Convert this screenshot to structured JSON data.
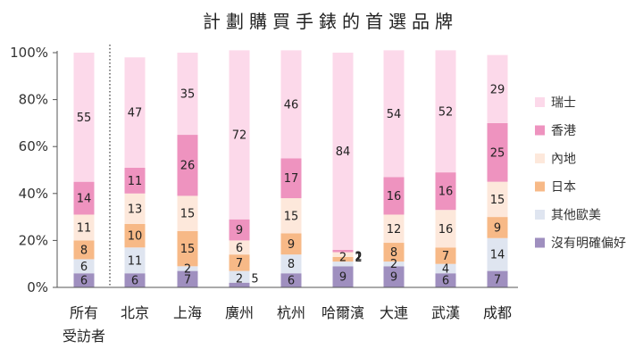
{
  "chart_data": {
    "type": "bar",
    "stacked": true,
    "percent": true,
    "title": "計劃購買手錶的首選品牌",
    "categories": [
      "所有受訪者",
      "北京",
      "上海",
      "廣州",
      "杭州",
      "哈爾濱",
      "大連",
      "武漢",
      "成都"
    ],
    "category_lines": [
      [
        "所有",
        "受訪者"
      ],
      [
        "北京"
      ],
      [
        "上海"
      ],
      [
        "廣州"
      ],
      [
        "杭州"
      ],
      [
        "哈爾濱"
      ],
      [
        "大連"
      ],
      [
        "武漢"
      ],
      [
        "成都"
      ]
    ],
    "ylim": [
      0,
      100
    ],
    "yticks": [
      "0%",
      "20%",
      "40%",
      "60%",
      "80%",
      "100%"
    ],
    "legend_position": "right",
    "series": [
      {
        "name": "沒有明確偏好",
        "color": "#9f8fbf",
        "values": [
          6,
          6,
          7,
          2,
          6,
          9,
          9,
          6,
          7
        ]
      },
      {
        "name": "其他歐美",
        "color": "#dfe5f0",
        "values": [
          6,
          11,
          2,
          5,
          8,
          2,
          2,
          4,
          14
        ]
      },
      {
        "name": "日本",
        "color": "#f7b987",
        "values": [
          8,
          10,
          15,
          7,
          9,
          2,
          8,
          7,
          9
        ]
      },
      {
        "name": "內地",
        "color": "#fde8db",
        "values": [
          11,
          13,
          15,
          6,
          15,
          2,
          12,
          16,
          15
        ]
      },
      {
        "name": "香港",
        "color": "#ee93bf",
        "values": [
          14,
          11,
          26,
          9,
          17,
          1,
          16,
          16,
          25
        ]
      },
      {
        "name": "瑞士",
        "color": "#fcd9ea",
        "values": [
          55,
          47,
          35,
          72,
          46,
          84,
          54,
          52,
          29
        ]
      }
    ]
  }
}
